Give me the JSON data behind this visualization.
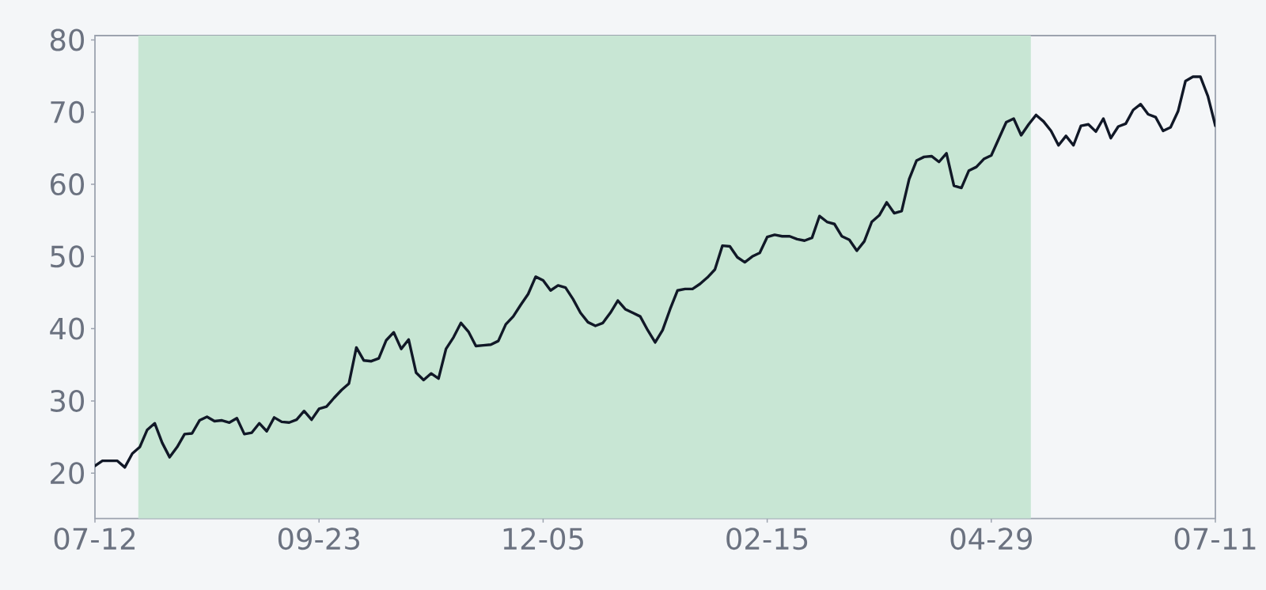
{
  "chart_data": {
    "type": "line",
    "categories": [
      "07-12",
      null,
      null,
      null,
      null,
      null,
      null,
      null,
      null,
      null,
      null,
      null,
      null,
      null,
      null,
      null,
      null,
      null,
      null,
      null,
      null,
      null,
      null,
      null,
      null,
      null,
      null,
      null,
      null,
      null,
      "09-23",
      null,
      null,
      null,
      null,
      null,
      null,
      null,
      null,
      null,
      null,
      null,
      null,
      null,
      null,
      null,
      null,
      null,
      null,
      null,
      null,
      null,
      null,
      null,
      null,
      null,
      null,
      null,
      null,
      null,
      "12-05",
      null,
      null,
      null,
      null,
      null,
      null,
      null,
      null,
      null,
      null,
      null,
      null,
      null,
      null,
      null,
      null,
      null,
      null,
      null,
      null,
      null,
      null,
      null,
      null,
      null,
      null,
      null,
      null,
      null,
      "02-15",
      null,
      null,
      null,
      null,
      null,
      null,
      null,
      null,
      null,
      null,
      null,
      null,
      null,
      null,
      null,
      null,
      null,
      null,
      null,
      null,
      null,
      null,
      null,
      null,
      null,
      null,
      null,
      null,
      null,
      "04-29",
      null,
      null,
      null,
      null,
      null,
      null,
      null,
      null,
      null,
      null,
      null,
      null,
      null,
      null,
      null,
      null,
      null,
      null,
      null,
      null,
      null,
      null,
      null,
      null,
      null,
      null,
      null,
      null,
      null,
      "07-11"
    ],
    "values": [
      21.0,
      21.7,
      21.7,
      21.7,
      20.8,
      22.7,
      23.6,
      26.0,
      26.9,
      24.2,
      22.2,
      23.6,
      25.4,
      25.5,
      27.3,
      27.8,
      27.2,
      27.3,
      27.0,
      27.6,
      25.4,
      25.6,
      26.9,
      25.8,
      27.7,
      27.1,
      27.0,
      27.4,
      28.6,
      27.4,
      28.9,
      29.2,
      30.4,
      31.5,
      32.4,
      37.4,
      35.6,
      35.5,
      35.9,
      38.4,
      39.5,
      37.2,
      38.5,
      33.9,
      32.9,
      33.8,
      33.1,
      37.2,
      38.8,
      40.8,
      39.6,
      37.6,
      37.7,
      37.8,
      38.3,
      40.6,
      41.7,
      43.3,
      44.8,
      47.2,
      46.7,
      45.3,
      46.0,
      45.7,
      44.1,
      42.2,
      40.9,
      40.4,
      40.8,
      42.2,
      43.9,
      42.7,
      42.2,
      41.7,
      39.8,
      38.1,
      39.8,
      42.7,
      45.3,
      45.5,
      45.5,
      46.2,
      47.1,
      48.2,
      51.5,
      51.4,
      49.9,
      49.2,
      50.0,
      50.5,
      52.7,
      53.0,
      52.8,
      52.8,
      52.4,
      52.2,
      52.6,
      55.6,
      54.8,
      54.5,
      52.8,
      52.3,
      50.8,
      52.1,
      54.8,
      55.7,
      57.5,
      56.0,
      56.3,
      60.7,
      63.3,
      63.8,
      63.9,
      63.1,
      64.3,
      59.8,
      59.5,
      61.9,
      62.4,
      63.5,
      64.0,
      66.3,
      68.6,
      69.1,
      66.8,
      68.3,
      69.6,
      68.7,
      67.4,
      65.4,
      66.7,
      65.4,
      68.1,
      68.3,
      67.3,
      69.1,
      66.4,
      68.0,
      68.4,
      70.3,
      71.1,
      69.7,
      69.3,
      67.4,
      67.9,
      70.1,
      74.3,
      74.9,
      74.9,
      72.2,
      68.1
    ],
    "color": "#111827",
    "ylim": [
      13.7,
      80.6
    ],
    "yticks": [
      20,
      30,
      40,
      50,
      60,
      70,
      80
    ]
  }
}
